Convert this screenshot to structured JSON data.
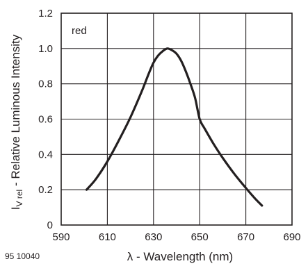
{
  "chart_data": {
    "type": "line",
    "title": "",
    "xlabel": "λ - Wavelength (nm)",
    "ylabel_main": "I",
    "ylabel_sub": "V rel",
    "ylabel_rest": " - Relative Luminous Intensity",
    "xlim": [
      590,
      690
    ],
    "ylim": [
      0,
      1.2
    ],
    "xticks": [
      590,
      610,
      630,
      650,
      670,
      690
    ],
    "yticks": [
      0,
      0.2,
      0.4,
      0.6,
      0.8,
      1.0,
      1.2
    ],
    "ytick_labels": [
      "0",
      "0.2",
      "0.4",
      "0.6",
      "0.8",
      "1.0",
      "1.2"
    ],
    "grid": true,
    "series": [
      {
        "name": "red",
        "color": "#231f20",
        "x": [
          601,
          605,
          610,
          615,
          620,
          625,
          628,
          630,
          632,
          634,
          636,
          638,
          640,
          642,
          644,
          646,
          648,
          650,
          652,
          656,
          660,
          665,
          670,
          674,
          677
        ],
        "y": [
          0.2,
          0.26,
          0.36,
          0.48,
          0.61,
          0.76,
          0.86,
          0.92,
          0.96,
          0.985,
          1.0,
          0.99,
          0.97,
          0.93,
          0.87,
          0.8,
          0.72,
          0.6,
          0.55,
          0.46,
          0.38,
          0.29,
          0.21,
          0.15,
          0.11
        ]
      }
    ],
    "corner_note": "95 10040"
  }
}
